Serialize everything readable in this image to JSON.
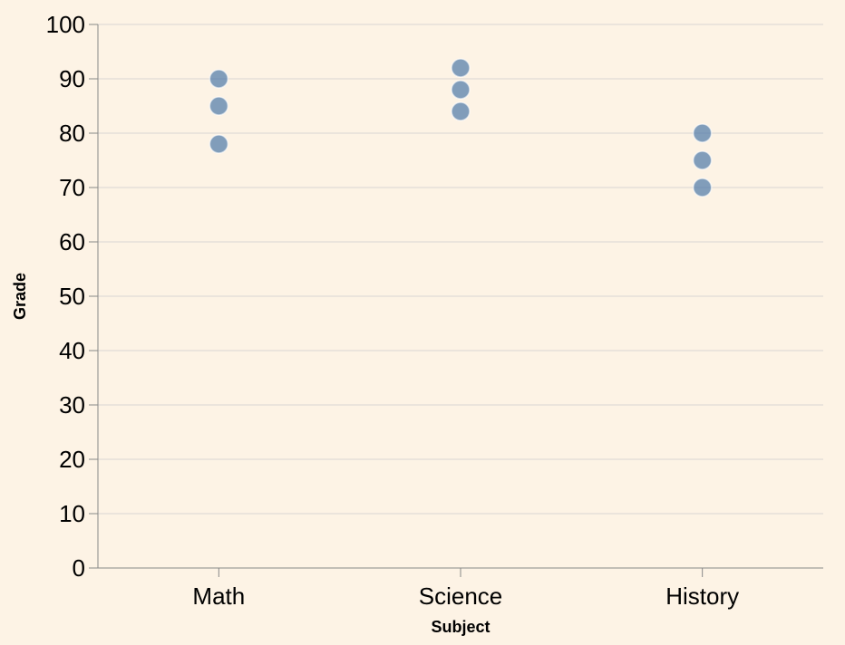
{
  "chart_data": {
    "type": "scatter",
    "categories": [
      "Math",
      "Science",
      "History"
    ],
    "points": [
      {
        "x": "Math",
        "y": 90
      },
      {
        "x": "Math",
        "y": 85
      },
      {
        "x": "Math",
        "y": 78
      },
      {
        "x": "Science",
        "y": 92
      },
      {
        "x": "Science",
        "y": 88
      },
      {
        "x": "Science",
        "y": 84
      },
      {
        "x": "History",
        "y": 80
      },
      {
        "x": "History",
        "y": 75
      },
      {
        "x": "History",
        "y": 70
      }
    ],
    "xlabel": "Subject",
    "ylabel": "Grade",
    "ylim": [
      0,
      100
    ],
    "yticks": [
      0,
      10,
      20,
      30,
      40,
      50,
      60,
      70,
      80,
      90,
      100
    ],
    "grid": true,
    "point_color": "#4c78a8",
    "background": "#fdf3e5"
  }
}
